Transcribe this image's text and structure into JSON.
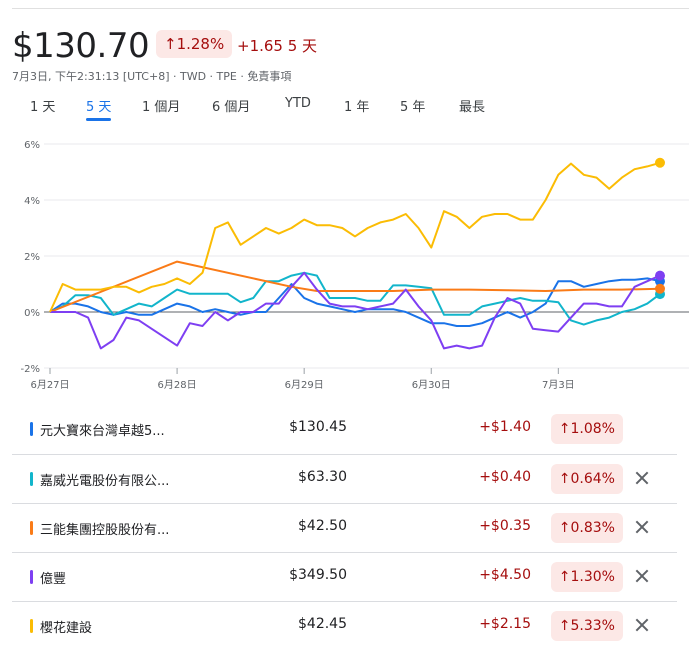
{
  "header": {
    "price": "$130.70",
    "pct_change": "↑1.28%",
    "abs_change": "+1.65 5 天",
    "subline": "7月3日, 下午2:31:13 [UTC+8] · TWD · TPE · 免責事項"
  },
  "tabs": [
    {
      "label": "1 天"
    },
    {
      "label": "5 天"
    },
    {
      "label": "1 個月"
    },
    {
      "label": "6 個月"
    },
    {
      "label": "YTD"
    },
    {
      "label": "1 年"
    },
    {
      "label": "5 年"
    },
    {
      "label": "最長"
    }
  ],
  "active_tab": 1,
  "chart_data": {
    "type": "line",
    "title": "",
    "xlabel": "",
    "ylabel": "",
    "ylim": [
      -2,
      6
    ],
    "y_ticks": [
      "6%",
      "4%",
      "2%",
      "0%",
      "-2%"
    ],
    "y_tick_values": [
      6,
      4,
      2,
      0,
      -2
    ],
    "x_ticks": [
      "6月27日",
      "6月28日",
      "6月29日",
      "6月30日",
      "7月3日"
    ],
    "x_tick_positions": [
      0,
      10,
      20,
      30,
      40
    ],
    "x_range": [
      0,
      48
    ],
    "grid": "horizontal",
    "series": [
      {
        "name": "元大寶來台灣卓越5...",
        "color": "#1a73e8",
        "x": [
          0,
          1,
          2,
          3,
          4,
          5,
          6,
          7,
          8,
          9,
          10,
          11,
          12,
          13,
          14,
          15,
          16,
          17,
          18,
          19,
          20,
          21,
          22,
          23,
          24,
          25,
          26,
          27,
          28,
          29,
          30,
          31,
          32,
          33,
          34,
          35,
          36,
          37,
          38,
          39,
          40,
          41,
          42,
          43,
          44,
          45,
          46,
          47,
          48
        ],
        "y": [
          0,
          0.3,
          0.3,
          0.2,
          0,
          -0.1,
          0,
          -0.1,
          -0.1,
          0.1,
          0.3,
          0.2,
          0,
          0.1,
          0,
          -0.1,
          0,
          0,
          0.5,
          1,
          0.5,
          0.3,
          0.2,
          0.1,
          0,
          0.1,
          0.1,
          0.1,
          0,
          -0.2,
          -0.4,
          -0.4,
          -0.5,
          -0.5,
          -0.4,
          -0.2,
          0,
          -0.2,
          0,
          0.3,
          1.1,
          1.1,
          0.9,
          1.0,
          1.1,
          1.15,
          1.15,
          1.2,
          1.1
        ]
      },
      {
        "name": "嘉威光電股份有限公...",
        "color": "#12b5cb",
        "x": [
          0,
          1,
          2,
          3,
          4,
          5,
          6,
          7,
          8,
          9,
          10,
          11,
          12,
          13,
          14,
          15,
          16,
          17,
          18,
          19,
          20,
          21,
          22,
          23,
          24,
          25,
          26,
          27,
          28,
          29,
          30,
          31,
          32,
          33,
          34,
          35,
          36,
          37,
          38,
          39,
          40,
          41,
          42,
          43,
          44,
          45,
          46,
          47,
          48
        ],
        "y": [
          0,
          0.2,
          0.6,
          0.6,
          0.5,
          -0.1,
          0.1,
          0.3,
          0.2,
          0.5,
          0.8,
          0.65,
          0.65,
          0.65,
          0.65,
          0.35,
          0.5,
          1.1,
          1.1,
          1.3,
          1.4,
          1.3,
          0.5,
          0.5,
          0.5,
          0.4,
          0.4,
          0.95,
          0.95,
          0.9,
          0.85,
          -0.1,
          -0.1,
          -0.1,
          0.2,
          0.3,
          0.4,
          0.5,
          0.4,
          0.4,
          0.35,
          -0.3,
          -0.45,
          -0.3,
          -0.2,
          0,
          0.1,
          0.3,
          0.64
        ]
      },
      {
        "name": "三能集團控股股份有...",
        "color": "#fa7b17",
        "x": [
          0,
          10,
          19,
          21,
          24,
          27,
          30,
          33,
          36,
          39,
          42,
          45,
          48
        ],
        "y": [
          0,
          1.8,
          0.9,
          0.75,
          0.75,
          0.75,
          0.8,
          0.8,
          0.78,
          0.75,
          0.8,
          0.8,
          0.83
        ]
      },
      {
        "name": "億豐",
        "color": "#7e3ff2",
        "x": [
          0,
          1,
          2,
          3,
          4,
          5,
          6,
          7,
          8,
          9,
          10,
          11,
          12,
          13,
          14,
          15,
          16,
          17,
          18,
          19,
          20,
          21,
          22,
          23,
          24,
          25,
          26,
          27,
          28,
          29,
          30,
          31,
          32,
          33,
          34,
          35,
          36,
          37,
          38,
          39,
          40,
          41,
          42,
          43,
          44,
          45,
          46,
          47,
          48
        ],
        "y": [
          0,
          0,
          0,
          -0.2,
          -1.3,
          -1.0,
          -0.2,
          -0.3,
          -0.6,
          -0.9,
          -1.2,
          -0.4,
          -0.5,
          0,
          -0.3,
          0,
          0,
          0.3,
          0.3,
          0.9,
          1.4,
          0.8,
          0.3,
          0.2,
          0.2,
          0.1,
          0.2,
          0.3,
          0.8,
          0.2,
          -0.3,
          -1.3,
          -1.2,
          -1.3,
          -1.2,
          -0.2,
          0.5,
          0.3,
          -0.6,
          -0.65,
          -0.7,
          -0.2,
          0.3,
          0.3,
          0.2,
          0.2,
          0.9,
          1.1,
          1.3
        ]
      },
      {
        "name": "櫻花建設",
        "color": "#fbbc04",
        "x": [
          0,
          1,
          2,
          3,
          4,
          5,
          6,
          7,
          8,
          9,
          10,
          11,
          12,
          13,
          14,
          15,
          16,
          17,
          18,
          19,
          20,
          21,
          22,
          23,
          24,
          25,
          26,
          27,
          28,
          29,
          30,
          31,
          32,
          33,
          34,
          35,
          36,
          37,
          38,
          39,
          40,
          41,
          42,
          43,
          44,
          45,
          46,
          47,
          48
        ],
        "y": [
          0,
          1,
          0.8,
          0.8,
          0.8,
          0.9,
          0.9,
          0.7,
          0.9,
          1.0,
          1.2,
          1.0,
          1.4,
          3.0,
          3.2,
          2.4,
          2.7,
          3.0,
          2.8,
          3.0,
          3.3,
          3.1,
          3.1,
          3.0,
          2.7,
          3.0,
          3.2,
          3.3,
          3.5,
          3.0,
          2.3,
          3.6,
          3.4,
          3.0,
          3.4,
          3.5,
          3.5,
          3.3,
          3.3,
          4.0,
          4.9,
          5.3,
          4.9,
          4.8,
          4.4,
          4.8,
          5.1,
          5.2,
          5.33
        ]
      }
    ]
  },
  "legend_rows": [
    {
      "name": "元大寶來台灣卓越5...",
      "price": "$130.45",
      "change": "+$1.40",
      "pct": "↑1.08%",
      "color": "#1a73e8",
      "removable": false
    },
    {
      "name": "嘉威光電股份有限公...",
      "price": "$63.30",
      "change": "+$0.40",
      "pct": "↑0.64%",
      "color": "#12b5cb",
      "removable": true
    },
    {
      "name": "三能集團控股股份有...",
      "price": "$42.50",
      "change": "+$0.35",
      "pct": "↑0.83%",
      "color": "#fa7b17",
      "removable": true
    },
    {
      "name": "億豐",
      "price": "$349.50",
      "change": "+$4.50",
      "pct": "↑1.30%",
      "color": "#7e3ff2",
      "removable": true
    },
    {
      "name": "櫻花建設",
      "price": "$42.45",
      "change": "+$2.15",
      "pct": "↑5.33%",
      "color": "#fbbc04",
      "removable": true
    }
  ]
}
